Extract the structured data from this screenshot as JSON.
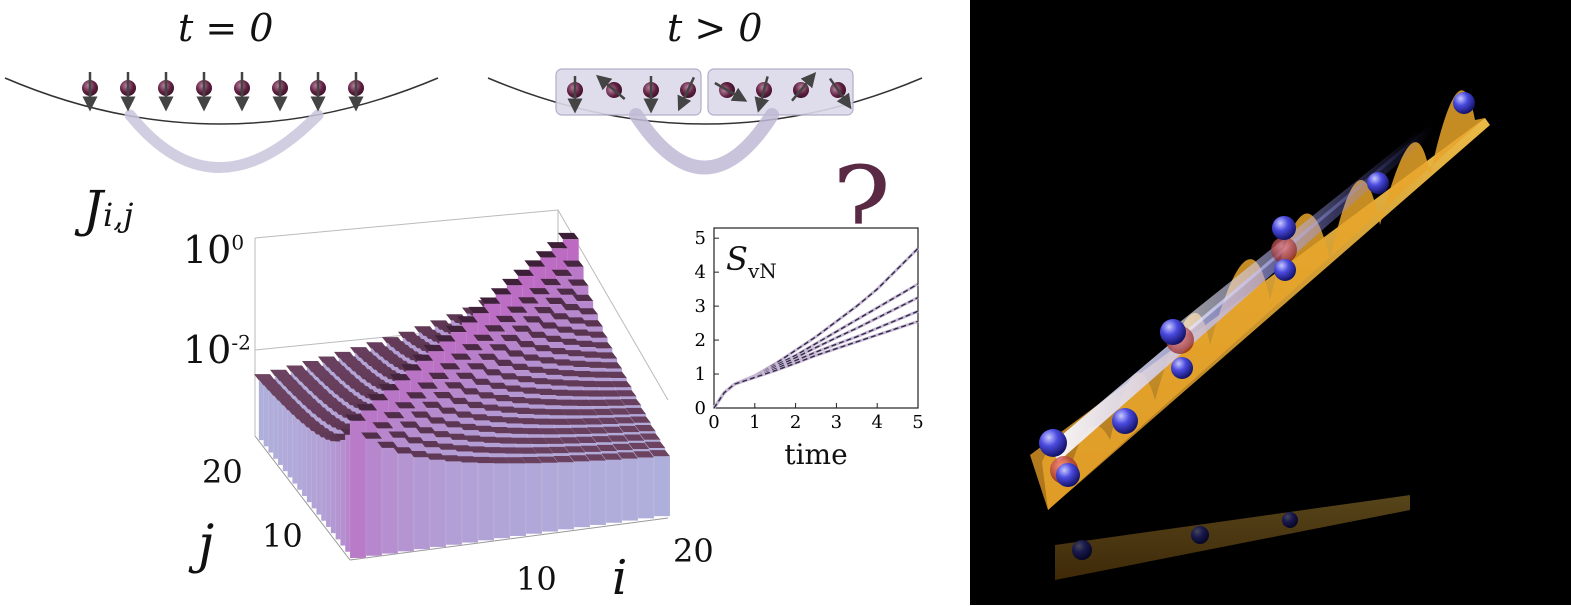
{
  "left_panel": {
    "t0_label": "t = 0",
    "tpos_label": "t > 0",
    "coupling_label_main": "J",
    "coupling_label_sub": "i,j",
    "question_mark": "?",
    "bar3d": {
      "z_tick_top": "10",
      "z_tick_top_exp": "0",
      "z_tick_mid": "10",
      "z_tick_mid_exp": "-2",
      "j_tick_20": "20",
      "j_tick_10": "10",
      "j_axis_label": "j",
      "i_tick_10": "10",
      "i_tick_20": "20",
      "i_axis_label": "i"
    }
  },
  "chart_data": {
    "type": "line",
    "title": "",
    "ylabel_main": "S",
    "ylabel_sub": "vN",
    "xlabel": "time",
    "xlim": [
      0,
      5
    ],
    "ylim": [
      0,
      5.3
    ],
    "xticks": [
      "0",
      "1",
      "2",
      "3",
      "4",
      "5"
    ],
    "yticks": [
      "0",
      "1",
      "2",
      "3",
      "4",
      "5"
    ],
    "x": [
      0,
      0.25,
      0.5,
      1,
      1.5,
      2,
      2.5,
      3,
      3.5,
      4,
      4.5,
      5
    ],
    "series": [
      {
        "values": [
          0,
          0.45,
          0.7,
          0.95,
          1.3,
          1.7,
          2.1,
          2.55,
          3.0,
          3.5,
          4.1,
          4.7
        ]
      },
      {
        "values": [
          0,
          0.45,
          0.7,
          0.95,
          1.25,
          1.55,
          1.9,
          2.25,
          2.6,
          2.95,
          3.3,
          3.65
        ]
      },
      {
        "values": [
          0,
          0.45,
          0.7,
          0.93,
          1.2,
          1.48,
          1.78,
          2.07,
          2.35,
          2.65,
          2.95,
          3.25
        ]
      },
      {
        "values": [
          0,
          0.45,
          0.7,
          0.92,
          1.15,
          1.4,
          1.65,
          1.88,
          2.1,
          2.35,
          2.6,
          2.85
        ]
      },
      {
        "values": [
          0,
          0.45,
          0.7,
          0.9,
          1.1,
          1.32,
          1.55,
          1.75,
          1.95,
          2.15,
          2.35,
          2.55
        ]
      }
    ]
  }
}
